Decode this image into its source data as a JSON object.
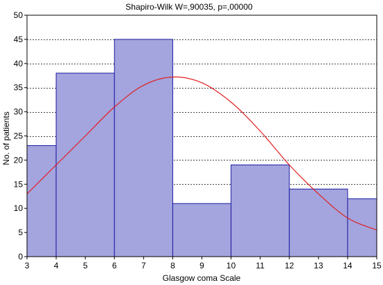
{
  "chart_data": {
    "type": "bar",
    "title": "Shapiro-Wilk W=,90035, p=,00000",
    "xlabel": "Glasgow coma Scale",
    "ylabel": "No. of patients",
    "xlim": [
      3,
      15
    ],
    "ylim": [
      0,
      50
    ],
    "x_ticks": [
      3,
      4,
      5,
      6,
      7,
      8,
      9,
      10,
      11,
      12,
      13,
      14,
      15
    ],
    "y_ticks": [
      0,
      5,
      10,
      15,
      20,
      25,
      30,
      35,
      40,
      45,
      50
    ],
    "grid": "horizontal dashed",
    "bins": [
      {
        "start": 3,
        "end": 4,
        "value": 23
      },
      {
        "start": 4,
        "end": 6,
        "value": 38
      },
      {
        "start": 6,
        "end": 8,
        "value": 45
      },
      {
        "start": 8,
        "end": 10,
        "value": 11
      },
      {
        "start": 10,
        "end": 12,
        "value": 19
      },
      {
        "start": 12,
        "end": 14,
        "value": 14
      },
      {
        "start": 14,
        "end": 15,
        "value": 12
      }
    ],
    "fit_curve": {
      "type": "normal",
      "peak_x": 8.1,
      "peak_y": 37.3,
      "points": [
        [
          3,
          13
        ],
        [
          4,
          19
        ],
        [
          5,
          25
        ],
        [
          6,
          31
        ],
        [
          7,
          35.5
        ],
        [
          8,
          37.2
        ],
        [
          9,
          36
        ],
        [
          10,
          32
        ],
        [
          11,
          26
        ],
        [
          12,
          19
        ],
        [
          13,
          13
        ],
        [
          14,
          8
        ],
        [
          15,
          5.5
        ]
      ]
    },
    "colors": {
      "bar_fill": "#a4a4de",
      "bar_stroke": "#1a1aa0",
      "curve": "#e02020",
      "grid": "#000000"
    }
  }
}
